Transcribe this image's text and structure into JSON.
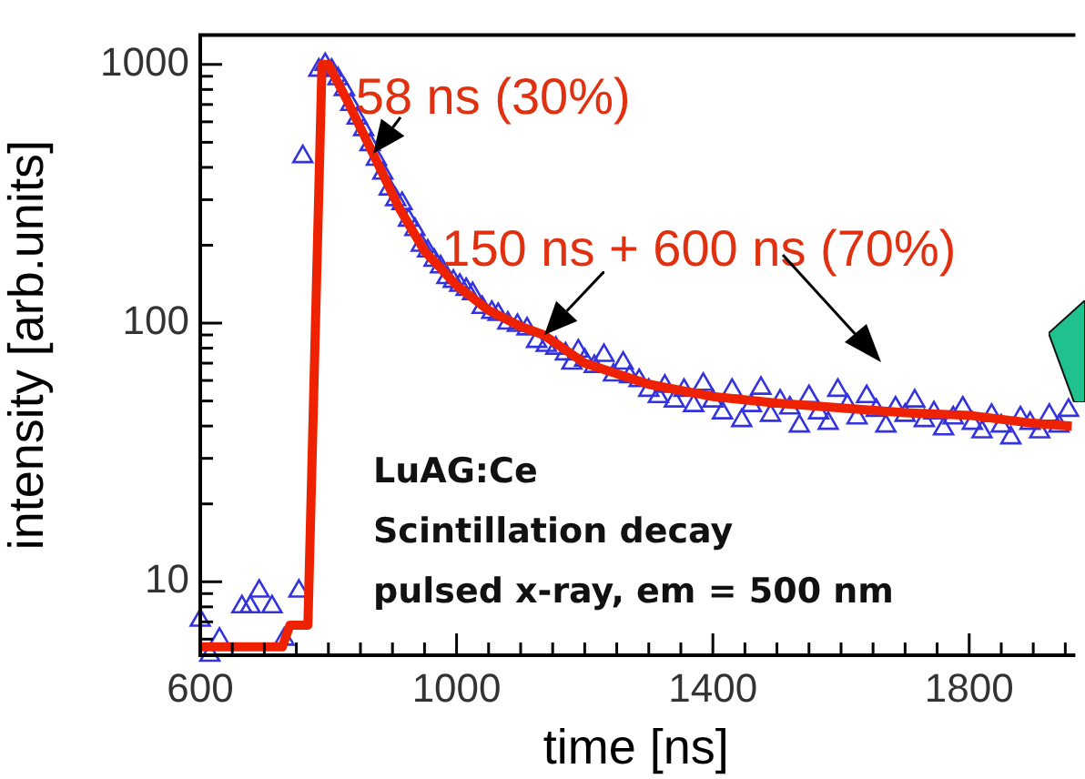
{
  "chart_data": {
    "type": "scatter",
    "xlabel": "time [ns]",
    "ylabel": "intensity [arb.units]",
    "log": "y",
    "grid": false,
    "legend": false,
    "xlim": [
      600,
      1960
    ],
    "ylim": [
      5.2,
      1300
    ],
    "xticks": [
      600,
      {
        "value": 650,
        "label": null
      },
      {
        "value": 700,
        "label": null
      },
      {
        "value": 750,
        "label": null
      },
      {
        "value": 800,
        "label": null
      },
      {
        "value": 850,
        "label": null
      },
      {
        "value": 900,
        "label": null
      },
      {
        "value": 950,
        "label": null
      },
      1000,
      {
        "value": 1050,
        "label": null
      },
      {
        "value": 1100,
        "label": null
      },
      {
        "value": 1150,
        "label": null
      },
      {
        "value": 1200,
        "label": null
      },
      {
        "value": 1250,
        "label": null
      },
      {
        "value": 1300,
        "label": null
      },
      {
        "value": 1350,
        "label": null
      },
      1400,
      {
        "value": 1450,
        "label": null
      },
      {
        "value": 1500,
        "label": null
      },
      {
        "value": 1550,
        "label": null
      },
      {
        "value": 1600,
        "label": null
      },
      {
        "value": 1650,
        "label": null
      },
      {
        "value": 1700,
        "label": null
      },
      {
        "value": 1750,
        "label": null
      },
      1800,
      {
        "value": 1850,
        "label": null
      },
      {
        "value": 1900,
        "label": null
      },
      {
        "value": 1950,
        "label": null
      }
    ],
    "yticks": [
      {
        "value": 6,
        "label": null
      },
      {
        "value": 7,
        "label": null
      },
      {
        "value": 8,
        "label": null
      },
      {
        "value": 9,
        "label": null
      },
      10,
      {
        "value": 20,
        "label": null
      },
      {
        "value": 30,
        "label": null
      },
      {
        "value": 40,
        "label": null
      },
      {
        "value": 50,
        "label": null
      },
      {
        "value": 60,
        "label": null
      },
      {
        "value": 70,
        "label": null
      },
      {
        "value": 80,
        "label": null
      },
      {
        "value": 90,
        "label": null
      },
      100,
      {
        "value": 200,
        "label": null
      },
      {
        "value": 300,
        "label": null
      },
      {
        "value": 400,
        "label": null
      },
      {
        "value": 500,
        "label": null
      },
      {
        "value": 600,
        "label": null
      },
      {
        "value": 700,
        "label": null
      },
      {
        "value": 800,
        "label": null
      },
      {
        "value": 900,
        "label": null
      },
      1000
    ],
    "series": [
      {
        "type": "line",
        "color": "#ee2200",
        "marker": "none",
        "line_style": "solid",
        "x": [
          600,
          728,
          740,
          768,
          790,
          800,
          830,
          870,
          910,
          950,
          1000,
          1050,
          1100,
          1136,
          1200,
          1300,
          1400,
          1500,
          1600,
          1700,
          1800,
          1900,
          1960
        ],
        "values": [
          5.6,
          5.6,
          6.8,
          6.8,
          1000,
          1000,
          720,
          450,
          280,
          190,
          140,
          112,
          97,
          90,
          70,
          58,
          52,
          49,
          47,
          45,
          44,
          41,
          40
        ]
      },
      {
        "type": "scatter",
        "color": "#3333dd",
        "marker": "triangle",
        "x": [
          600,
          615,
          630,
          665,
          678,
          692,
          712,
          731,
          754,
          760,
          785,
          795,
          805,
          815,
          825,
          835,
          845,
          855,
          865,
          875,
          885,
          895,
          905,
          915,
          925,
          935,
          945,
          955,
          965,
          975,
          985,
          995,
          1005,
          1015,
          1025,
          1040,
          1055,
          1065,
          1080,
          1095,
          1110,
          1125,
          1140,
          1155,
          1170,
          1180,
          1190,
          1200,
          1215,
          1230,
          1245,
          1260,
          1270,
          1285,
          1300,
          1315,
          1325,
          1340,
          1355,
          1370,
          1385,
          1400,
          1415,
          1430,
          1445,
          1460,
          1475,
          1490,
          1505,
          1520,
          1535,
          1550,
          1565,
          1580,
          1595,
          1610,
          1625,
          1640,
          1655,
          1670,
          1685,
          1700,
          1715,
          1730,
          1745,
          1760,
          1775,
          1790,
          1805,
          1820,
          1835,
          1850,
          1865,
          1880,
          1895,
          1910,
          1925,
          1940,
          1955
        ],
        "values": [
          7.1,
          5.2,
          6,
          8,
          8,
          9.2,
          8,
          6,
          9.2,
          440,
          950,
          1000,
          950,
          880,
          800,
          700,
          620,
          560,
          490,
          430,
          380,
          330,
          300,
          290,
          250,
          230,
          200,
          190,
          175,
          165,
          150,
          145,
          140,
          135,
          130,
          115,
          110,
          108,
          100,
          98,
          95,
          85,
          82,
          80,
          76,
          70,
          78,
          72,
          68,
          75,
          63,
          70,
          62,
          60,
          55,
          52,
          57,
          50,
          55,
          48,
          58,
          50,
          45,
          55,
          42,
          48,
          56,
          44,
          50,
          47,
          40,
          52,
          45,
          41,
          55,
          48,
          43,
          52,
          46,
          40,
          47,
          44,
          50,
          42,
          45,
          39,
          43,
          47,
          41,
          38,
          44,
          40,
          36,
          43,
          41,
          38,
          44,
          40,
          46
        ]
      }
    ],
    "annotations": [
      {
        "text": "58 ns (30%)",
        "x": 871,
        "y": 450
      },
      {
        "text": "150 ns + 600 ns (70%)",
        "x": 1136,
        "y": 90
      },
      "LuAG:Ce",
      "Scintillation decay",
      "pulsed x-ray, em = 500 nm"
    ]
  }
}
